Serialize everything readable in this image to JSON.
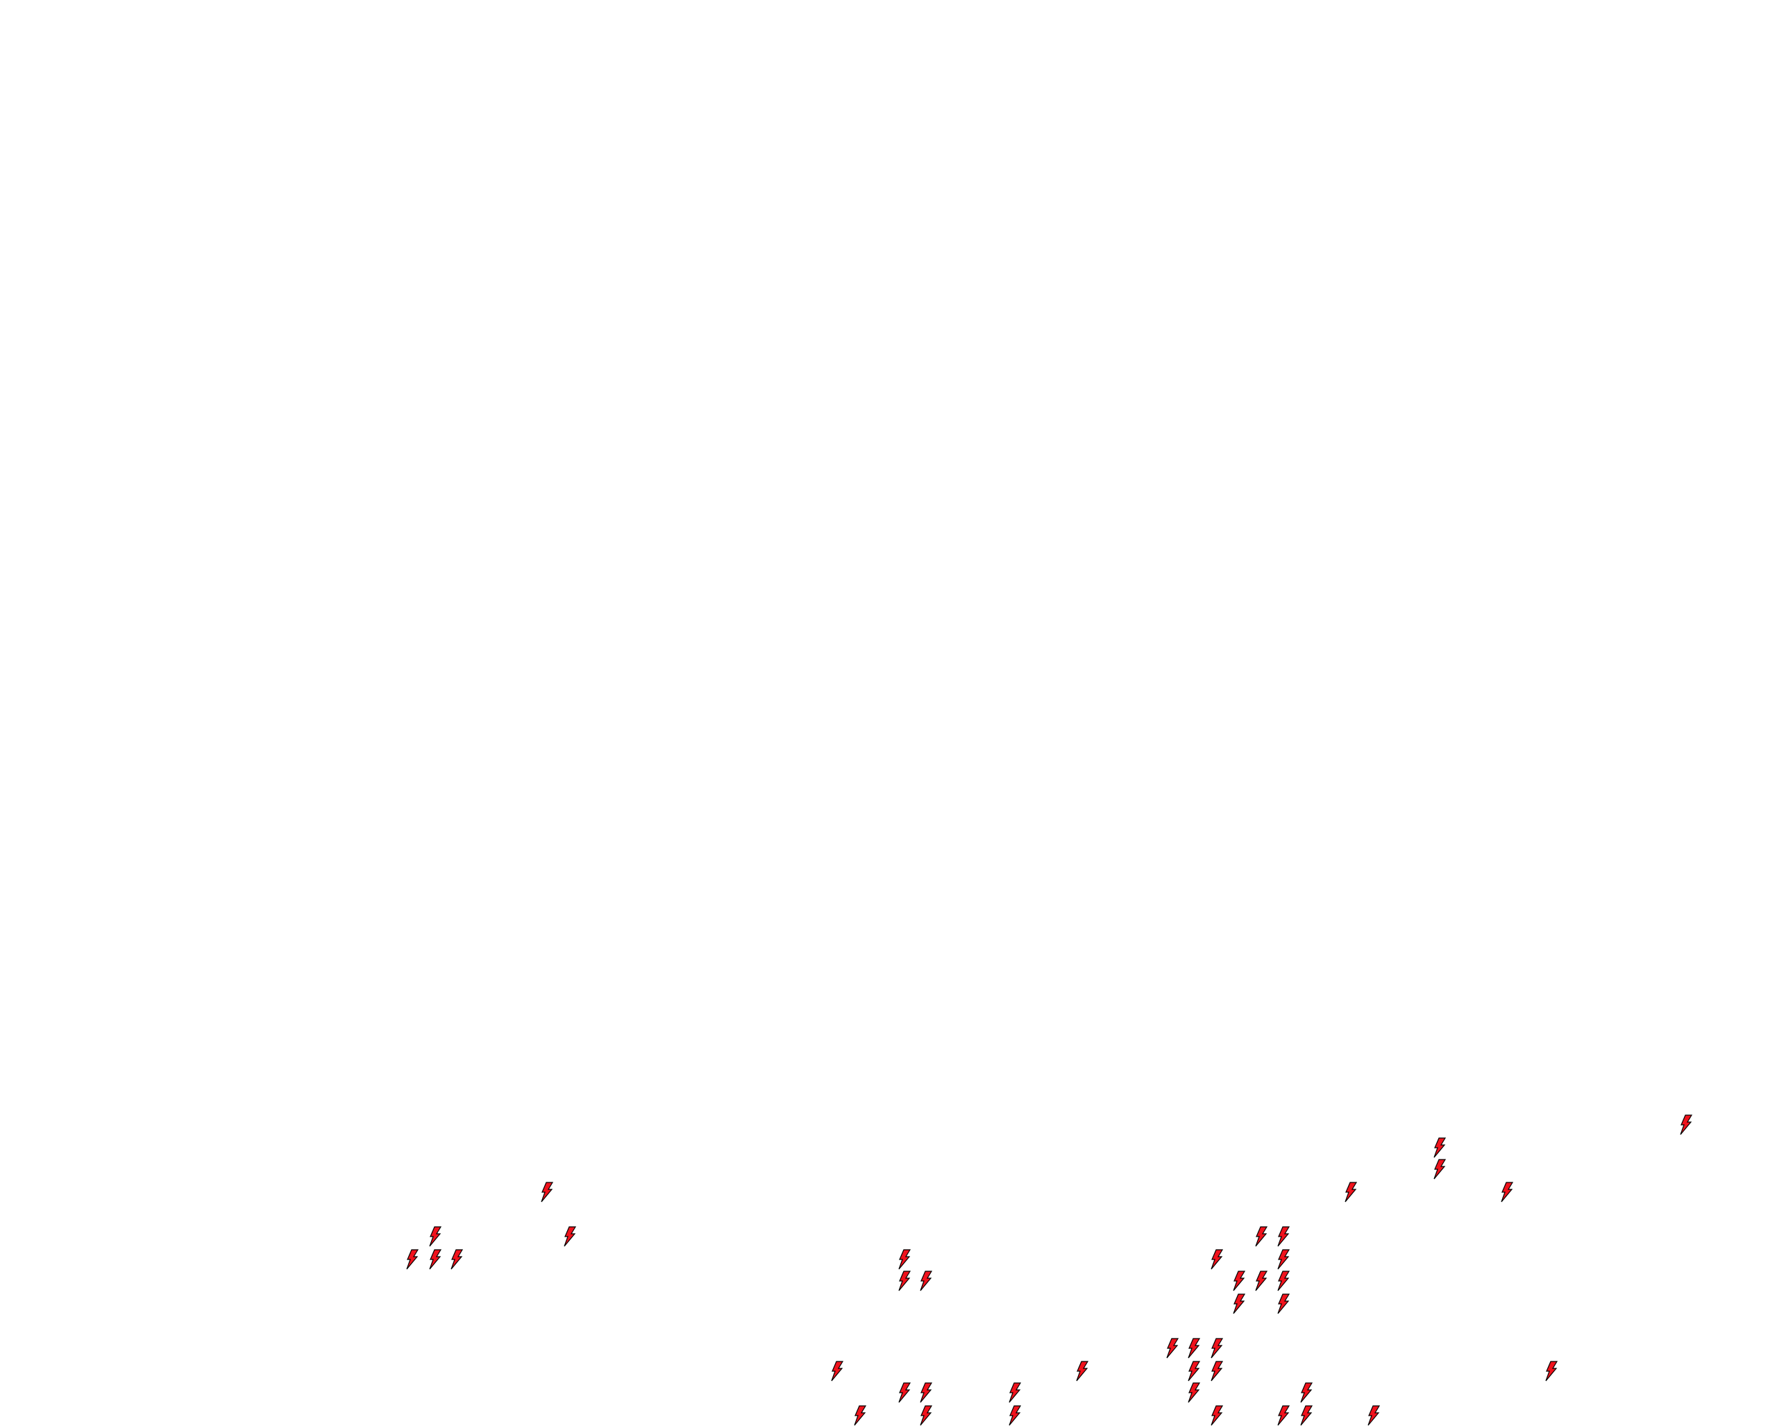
{
  "map": {
    "background_color": "#ffffff",
    "marker": {
      "icon": "lightning-bolt-icon",
      "fill_color": "#f0121c",
      "stroke_color": "#000000"
    },
    "marker_count": 51
  }
}
